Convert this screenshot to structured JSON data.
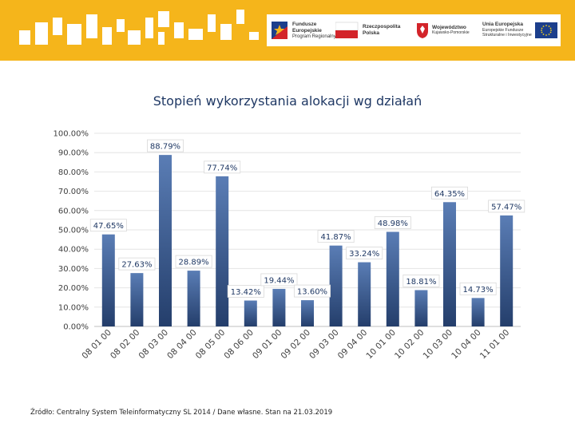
{
  "logos": {
    "fe_line1": "Fundusze",
    "fe_line2": "Europejskie",
    "fe_line3": "Program Regionalny",
    "rp_line1": "Rzeczpospolita",
    "rp_line2": "Polska",
    "woj_line1": "Województwo",
    "woj_line2": "Kujawsko-Pomorskie",
    "ue_line1": "Unia Europejska",
    "ue_line2": "Europejskie Fundusze",
    "ue_line3": "Strukturalne i Inwestycyjne"
  },
  "colors": {
    "band": "#f5b51b",
    "bar_top": "#5a7db5",
    "bar_bottom": "#243e6b",
    "title": "#1f3864"
  },
  "chart_data": {
    "type": "bar",
    "title": "Stopień wykorzystania alokacji wg działań",
    "categories": [
      "08 01 00",
      "08 02 00",
      "08 03 00",
      "08 04 00",
      "08 05 00",
      "08 06 00",
      "09 01 00",
      "09 02 00",
      "09 03 00",
      "09 04 00",
      "10 01 00",
      "10 02 00",
      "10 03 00",
      "10 04 00",
      "11 01 00"
    ],
    "values": [
      47.65,
      27.63,
      88.79,
      28.89,
      77.74,
      13.42,
      19.44,
      13.6,
      41.87,
      33.24,
      48.98,
      18.81,
      64.35,
      14.73,
      57.47
    ],
    "labels": [
      "47.65%",
      "27.63%",
      "88.79%",
      "28.89%",
      "77.74%",
      "13.42%",
      "19.44%",
      "13.60%",
      "41.87%",
      "33.24%",
      "48.98%",
      "18.81%",
      "64.35%",
      "14.73%",
      "57.47%"
    ],
    "ylim": [
      0,
      100
    ],
    "yticks": [
      0,
      10,
      20,
      30,
      40,
      50,
      60,
      70,
      80,
      90,
      100
    ],
    "ytick_labels": [
      "0.00%",
      "10.00%",
      "20.00%",
      "30.00%",
      "40.00%",
      "50.00%",
      "60.00%",
      "70.00%",
      "80.00%",
      "90.00%",
      "100.00%"
    ],
    "xlabel": "",
    "ylabel": "",
    "grid": true
  },
  "source_text": "Źródło: Centralny System Teleinformatyczny SL 2014 / Dane własne. Stan na 21.03.2019"
}
